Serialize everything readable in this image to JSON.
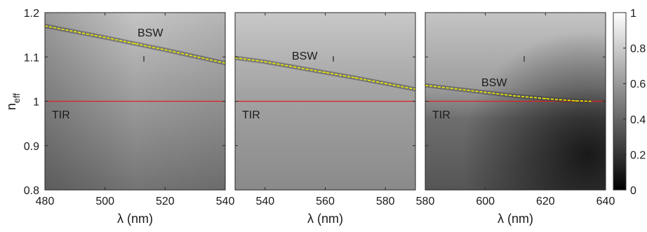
{
  "chart_data": {
    "type": "heatmap",
    "ylabel": "n",
    "ylabel_subscript": "eff",
    "ylim": [
      0.8,
      1.2
    ],
    "yticks": [
      0.8,
      0.9,
      1,
      1.1,
      1.2
    ],
    "colorbar": {
      "range": [
        0,
        1
      ],
      "ticks": [
        0,
        0.2,
        0.4,
        0.6,
        0.8,
        1
      ],
      "colormap": "gray"
    },
    "tir_line_color": "#e02020",
    "bsw_curve_color": "#f0f000",
    "panels": [
      {
        "xlabel": "λ (nm)",
        "xlim": [
          480,
          540
        ],
        "xticks": [
          480,
          500,
          520,
          540
        ],
        "tir_value": 1.0,
        "labels": {
          "bsw": "BSW",
          "tir": "TIR"
        },
        "bsw_curve": {
          "x": [
            480,
            490,
            500,
            510,
            520,
            530,
            540
          ],
          "y": [
            1.17,
            1.157,
            1.144,
            1.13,
            1.116,
            1.101,
            1.086
          ]
        }
      },
      {
        "xlabel": "λ (nm)",
        "xlim": [
          530,
          590
        ],
        "xticks": [
          540,
          560,
          580
        ],
        "tir_value": 1.0,
        "labels": {
          "bsw": "BSW",
          "tir": "TIR"
        },
        "bsw_curve": {
          "x": [
            530,
            540,
            550,
            560,
            570,
            580,
            590
          ],
          "y": [
            1.098,
            1.089,
            1.077,
            1.065,
            1.053,
            1.04,
            1.027
          ]
        }
      },
      {
        "xlabel": "λ (nm)",
        "xlim": [
          580,
          640
        ],
        "xticks": [
          580,
          600,
          620,
          640
        ],
        "tir_value": 1.0,
        "labels": {
          "bsw": "BSW",
          "tir": "TIR"
        },
        "bsw_curve": {
          "x": [
            580,
            590,
            600,
            610,
            620,
            630,
            635
          ],
          "y": [
            1.036,
            1.028,
            1.02,
            1.012,
            1.006,
            1.001,
            1.0
          ]
        }
      }
    ]
  }
}
